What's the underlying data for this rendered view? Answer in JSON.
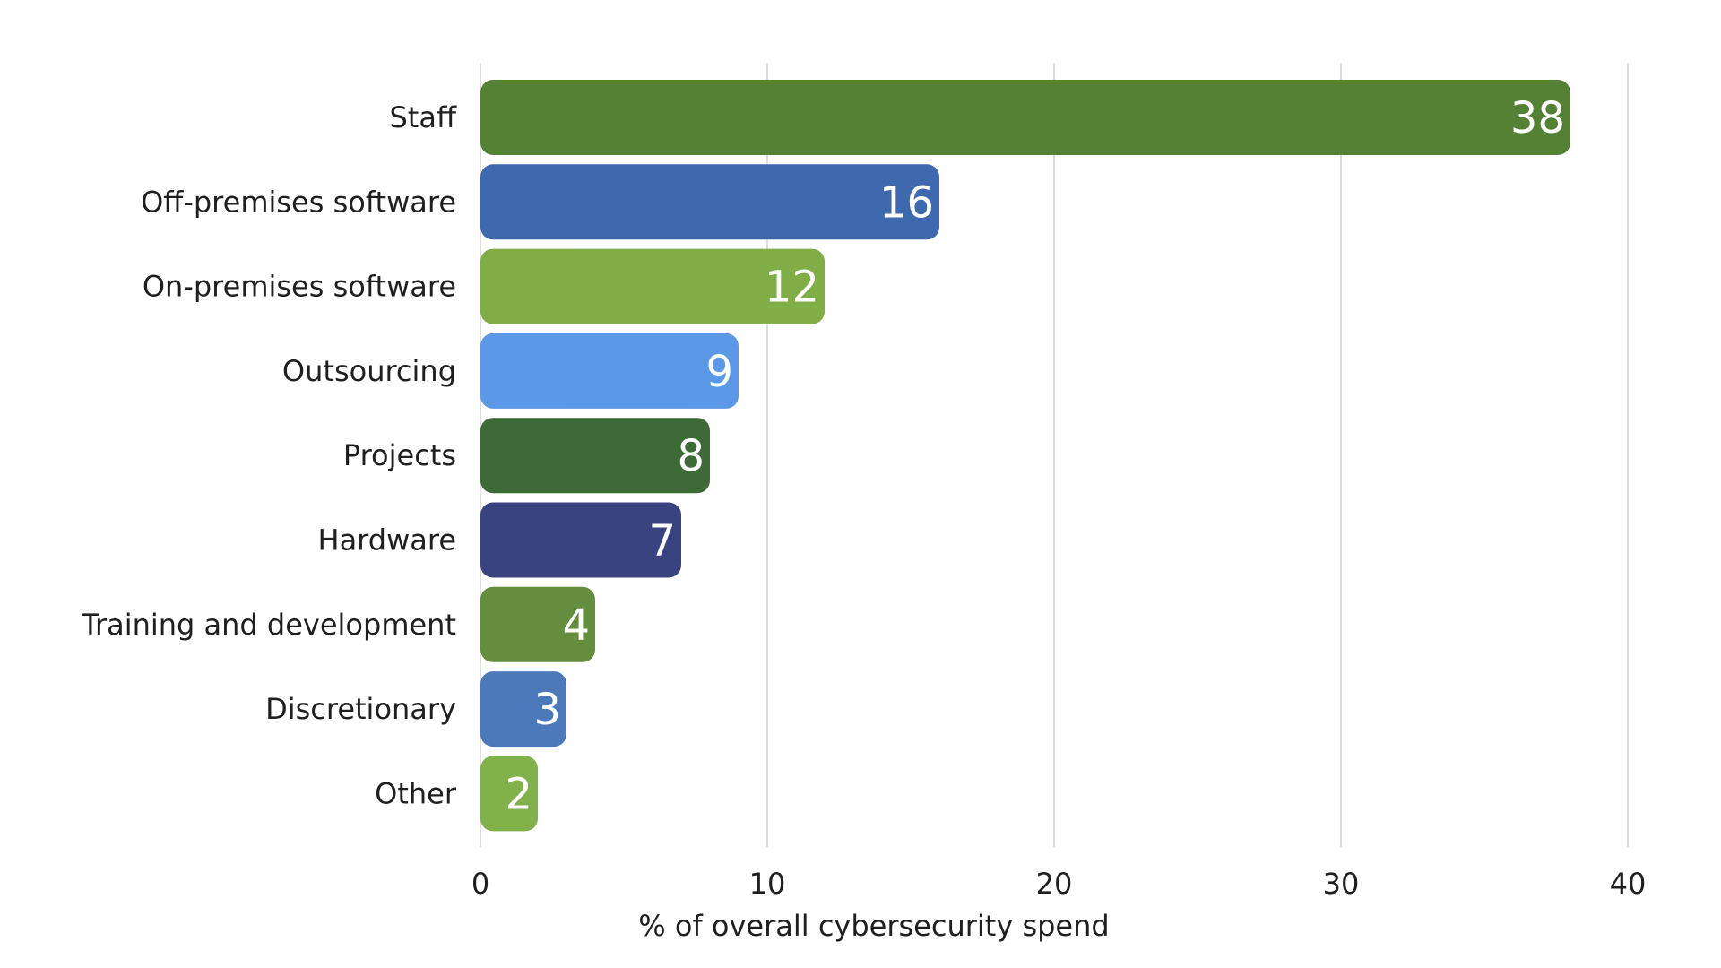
{
  "chart_data": {
    "type": "bar",
    "orientation": "horizontal",
    "categories": [
      "Staff",
      "Off-premises software",
      "On-premises software",
      "Outsourcing",
      "Projects",
      "Hardware",
      "Training and development",
      "Discretionary",
      "Other"
    ],
    "values": [
      38,
      16,
      12,
      9,
      8,
      7,
      4,
      3,
      2
    ],
    "bar_colors": [
      "#558135",
      "#3f69ae",
      "#80ad46",
      "#5b98e6",
      "#3e6a37",
      "#39437f",
      "#648d3d",
      "#4c79ba",
      "#82b14c"
    ],
    "title": "",
    "xlabel": "% of overall cybersecurity spend",
    "ylabel": "",
    "xlim": [
      0,
      40
    ],
    "x_ticks": [
      0,
      10,
      20,
      30,
      40
    ],
    "grid": "vertical",
    "legend": "none",
    "data_labels": "inside-end"
  }
}
